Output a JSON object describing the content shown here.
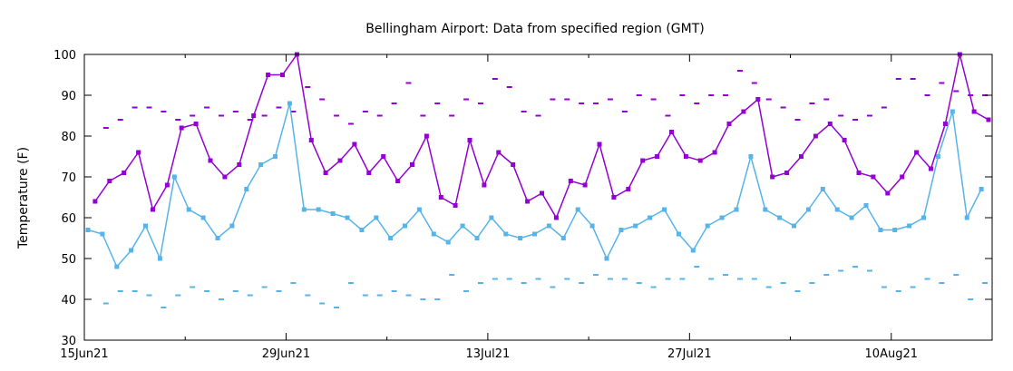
{
  "chart_data": {
    "type": "line",
    "title": "Bellingham Airport:  Data from specified region (GMT)",
    "xlabel": "",
    "ylabel": "Temperature (F)",
    "ylim": [
      30,
      100
    ],
    "yticks": [
      30,
      40,
      50,
      60,
      70,
      80,
      90,
      100
    ],
    "xlim": [
      "2021-06-15",
      "2021-08-17"
    ],
    "xticks": [
      {
        "date": "2021-06-15",
        "label": "15Jun21"
      },
      {
        "date": "2021-06-29",
        "label": "29Jun21"
      },
      {
        "date": "2021-07-13",
        "label": "13Jul21"
      },
      {
        "date": "2021-07-27",
        "label": "27Jul21"
      },
      {
        "date": "2021-08-10",
        "label": "10Aug21"
      }
    ],
    "grid": false,
    "legend": "none",
    "colors": {
      "high": "#9400d3",
      "low": "#56b4e9"
    },
    "series": [
      {
        "color": "#9400d3",
        "dates": [
          "2021-06-15",
          "2021-06-16",
          "2021-06-17",
          "2021-06-18",
          "2021-06-19",
          "2021-06-20",
          "2021-06-21",
          "2021-06-22",
          "2021-06-23",
          "2021-06-24",
          "2021-06-25",
          "2021-06-26",
          "2021-06-27",
          "2021-06-28",
          "2021-06-29",
          "2021-06-30",
          "2021-07-01",
          "2021-07-02",
          "2021-07-03",
          "2021-07-04",
          "2021-07-05",
          "2021-07-06",
          "2021-07-07",
          "2021-07-08",
          "2021-07-09",
          "2021-07-10",
          "2021-07-11",
          "2021-07-12",
          "2021-07-13",
          "2021-07-14",
          "2021-07-15",
          "2021-07-16",
          "2021-07-17",
          "2021-07-18",
          "2021-07-19",
          "2021-07-20",
          "2021-07-21",
          "2021-07-22",
          "2021-07-23",
          "2021-07-24",
          "2021-07-25",
          "2021-07-26",
          "2021-07-27",
          "2021-07-28",
          "2021-07-29",
          "2021-07-30",
          "2021-07-31",
          "2021-08-01",
          "2021-08-02",
          "2021-08-03",
          "2021-08-04",
          "2021-08-05",
          "2021-08-06",
          "2021-08-07",
          "2021-08-08",
          "2021-08-09",
          "2021-08-10",
          "2021-08-11",
          "2021-08-12",
          "2021-08-13",
          "2021-08-14",
          "2021-08-15",
          "2021-08-16"
        ],
        "values": [
          64,
          69,
          71,
          76,
          62,
          68,
          82,
          83,
          74,
          70,
          73,
          85,
          95,
          95,
          100,
          79,
          71,
          74,
          78,
          71,
          75,
          69,
          73,
          80,
          65,
          63,
          79,
          68,
          76,
          73,
          64,
          66,
          60,
          69,
          68,
          78,
          65,
          67,
          74,
          75,
          81,
          75,
          74,
          76,
          83,
          86,
          89,
          70,
          71,
          75,
          80,
          83,
          79,
          71,
          70,
          66,
          70,
          76,
          72,
          83,
          100,
          86,
          84
        ]
      },
      {
        "color": "#56b4e9",
        "dates": [
          "2021-06-15",
          "2021-06-16",
          "2021-06-17",
          "2021-06-18",
          "2021-06-19",
          "2021-06-20",
          "2021-06-21",
          "2021-06-22",
          "2021-06-23",
          "2021-06-24",
          "2021-06-25",
          "2021-06-26",
          "2021-06-27",
          "2021-06-28",
          "2021-06-29",
          "2021-06-30",
          "2021-07-01",
          "2021-07-02",
          "2021-07-03",
          "2021-07-04",
          "2021-07-05",
          "2021-07-06",
          "2021-07-07",
          "2021-07-08",
          "2021-07-09",
          "2021-07-10",
          "2021-07-11",
          "2021-07-12",
          "2021-07-13",
          "2021-07-14",
          "2021-07-15",
          "2021-07-16",
          "2021-07-17",
          "2021-07-18",
          "2021-07-19",
          "2021-07-20",
          "2021-07-21",
          "2021-07-22",
          "2021-07-23",
          "2021-07-24",
          "2021-07-25",
          "2021-07-26",
          "2021-07-27",
          "2021-07-28",
          "2021-07-29",
          "2021-07-30",
          "2021-07-31",
          "2021-08-01",
          "2021-08-02",
          "2021-08-03",
          "2021-08-04",
          "2021-08-05",
          "2021-08-06",
          "2021-08-07",
          "2021-08-08",
          "2021-08-09",
          "2021-08-10",
          "2021-08-11",
          "2021-08-12",
          "2021-08-13",
          "2021-08-14",
          "2021-08-15",
          "2021-08-16"
        ],
        "values": [
          57,
          56,
          48,
          52,
          58,
          50,
          70,
          62,
          60,
          55,
          58,
          67,
          73,
          75,
          88,
          62,
          62,
          61,
          60,
          57,
          60,
          55,
          58,
          62,
          56,
          54,
          58,
          55,
          60,
          56,
          55,
          56,
          58,
          55,
          62,
          58,
          50,
          57,
          58,
          60,
          62,
          56,
          52,
          58,
          60,
          62,
          75,
          62,
          60,
          58,
          62,
          67,
          62,
          60,
          63,
          57,
          57,
          58,
          60,
          75,
          86,
          60,
          67
        ]
      }
    ],
    "record_highs": {
      "color": "#9400d3",
      "dates": [
        "2021-06-16",
        "2021-06-17",
        "2021-06-18",
        "2021-06-19",
        "2021-06-20",
        "2021-06-21",
        "2021-06-22",
        "2021-06-23",
        "2021-06-24",
        "2021-06-25",
        "2021-06-26",
        "2021-06-27",
        "2021-06-28",
        "2021-06-29",
        "2021-06-30",
        "2021-07-01",
        "2021-07-02",
        "2021-07-03",
        "2021-07-04",
        "2021-07-05",
        "2021-07-06",
        "2021-07-07",
        "2021-07-08",
        "2021-07-09",
        "2021-07-10",
        "2021-07-11",
        "2021-07-12",
        "2021-07-13",
        "2021-07-14",
        "2021-07-15",
        "2021-07-16",
        "2021-07-17",
        "2021-07-18",
        "2021-07-19",
        "2021-07-20",
        "2021-07-21",
        "2021-07-22",
        "2021-07-23",
        "2021-07-24",
        "2021-07-25",
        "2021-07-26",
        "2021-07-27",
        "2021-07-28",
        "2021-07-29",
        "2021-07-30",
        "2021-07-31",
        "2021-08-01",
        "2021-08-02",
        "2021-08-03",
        "2021-08-04",
        "2021-08-05",
        "2021-08-06",
        "2021-08-07",
        "2021-08-08",
        "2021-08-09",
        "2021-08-10",
        "2021-08-11",
        "2021-08-12",
        "2021-08-13",
        "2021-08-14",
        "2021-08-15",
        "2021-08-16"
      ],
      "values": [
        82,
        84,
        87,
        87,
        86,
        84,
        85,
        87,
        85,
        86,
        84,
        85,
        87,
        86,
        92,
        89,
        85,
        83,
        86,
        85,
        88,
        93,
        85,
        88,
        85,
        89,
        88,
        94,
        92,
        86,
        85,
        89,
        89,
        88,
        88,
        89,
        86,
        90,
        89,
        85,
        90,
        88,
        90,
        90,
        96,
        93,
        89,
        87,
        84,
        88,
        89,
        85,
        84,
        85,
        87,
        94,
        94,
        90,
        93,
        91,
        90,
        90
      ]
    },
    "record_lows": {
      "color": "#56b4e9",
      "dates": [
        "2021-06-16",
        "2021-06-17",
        "2021-06-18",
        "2021-06-19",
        "2021-06-20",
        "2021-06-21",
        "2021-06-22",
        "2021-06-23",
        "2021-06-24",
        "2021-06-25",
        "2021-06-26",
        "2021-06-27",
        "2021-06-28",
        "2021-06-29",
        "2021-06-30",
        "2021-07-01",
        "2021-07-02",
        "2021-07-03",
        "2021-07-04",
        "2021-07-05",
        "2021-07-06",
        "2021-07-07",
        "2021-07-08",
        "2021-07-09",
        "2021-07-10",
        "2021-07-11",
        "2021-07-12",
        "2021-07-13",
        "2021-07-14",
        "2021-07-15",
        "2021-07-16",
        "2021-07-17",
        "2021-07-18",
        "2021-07-19",
        "2021-07-20",
        "2021-07-21",
        "2021-07-22",
        "2021-07-23",
        "2021-07-24",
        "2021-07-25",
        "2021-07-26",
        "2021-07-27",
        "2021-07-28",
        "2021-07-29",
        "2021-07-30",
        "2021-07-31",
        "2021-08-01",
        "2021-08-02",
        "2021-08-03",
        "2021-08-04",
        "2021-08-05",
        "2021-08-06",
        "2021-08-07",
        "2021-08-08",
        "2021-08-09",
        "2021-08-10",
        "2021-08-11",
        "2021-08-12",
        "2021-08-13",
        "2021-08-14",
        "2021-08-15",
        "2021-08-16"
      ],
      "values": [
        39,
        42,
        42,
        41,
        38,
        41,
        43,
        42,
        40,
        42,
        41,
        43,
        42,
        44,
        41,
        39,
        38,
        44,
        41,
        41,
        42,
        41,
        40,
        40,
        46,
        42,
        44,
        45,
        45,
        44,
        45,
        43,
        45,
        44,
        46,
        45,
        45,
        44,
        43,
        45,
        45,
        48,
        45,
        46,
        45,
        45,
        43,
        44,
        42,
        44,
        46,
        47,
        48,
        47,
        43,
        42,
        43,
        45,
        44,
        46,
        40,
        44
      ]
    }
  }
}
